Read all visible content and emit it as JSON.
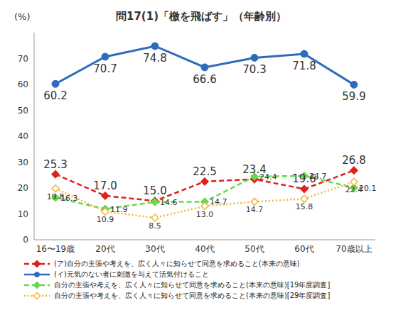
{
  "chart_data": {
    "type": "line",
    "title": "問17(1)「檄を飛ばす」（年齢別）",
    "y_label": "(%)",
    "categories": [
      "16〜19歳",
      "20代",
      "30代",
      "40代",
      "50代",
      "60代",
      "70歳以上"
    ],
    "ylim": [
      0,
      80
    ],
    "yticks": [
      0,
      10,
      20,
      30,
      40,
      50,
      60,
      70
    ],
    "grid": false,
    "data_labels": true,
    "legend": "bottom",
    "series": [
      {
        "name": "(ア)自分の主張や考えを、広く人々に知らせて同意を求めること(本来の意味)",
        "color": "#e0201b",
        "line_style": "dashed",
        "marker": "diamond",
        "values": [
          25.3,
          17.0,
          15.0,
          22.5,
          23.4,
          19.6,
          26.8
        ],
        "value_labels": [
          "25.3",
          "17.0",
          "15.0",
          "22.5",
          "23.4",
          "19.6",
          "26.8"
        ]
      },
      {
        "name": "(イ)元気のない者に刺激を与えて活気付けること",
        "color": "#2e6bbd",
        "line_style": "solid",
        "marker": "circle",
        "values": [
          60.2,
          70.7,
          74.8,
          66.6,
          70.3,
          71.8,
          59.9
        ],
        "value_labels": [
          "60.2",
          "70.7",
          "74.8",
          "66.6",
          "70.3",
          "71.8",
          "59.9"
        ]
      },
      {
        "name": "自分の主張や考えを、広く人々に知らせて同意を求めること(本来の意味)[19年度調査]",
        "color": "#6ad84f",
        "line_style": "dashed",
        "marker": "diamond",
        "values": [
          16.3,
          11.9,
          14.6,
          14.7,
          24.4,
          24.7,
          20.1
        ],
        "value_labels": [
          "16.3",
          "11.9",
          "14.6",
          "14.7",
          "24.4",
          "24.7",
          "20.1"
        ]
      },
      {
        "name": "自分の主張や考えを、広く人々に知らせて同意を求めること(本来の意味)[29年度調査]",
        "color": "#f2b33d",
        "line_style": "dotted",
        "marker": "diamond",
        "values": [
          19.8,
          10.9,
          8.5,
          13.0,
          14.7,
          15.8,
          22.4
        ],
        "value_labels": [
          "19.8",
          "10.9",
          "8.5",
          "13.0",
          "14.7",
          "15.8",
          "22.4"
        ]
      }
    ]
  }
}
